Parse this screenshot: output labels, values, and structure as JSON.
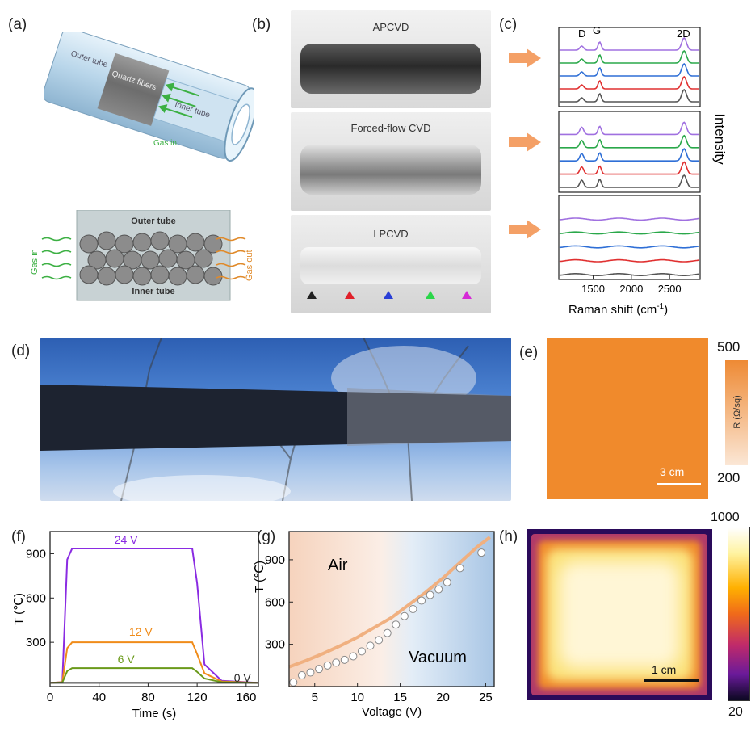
{
  "panels": {
    "a": {
      "label": "(a)",
      "tube_labels": {
        "outer": "Outer tube",
        "quartz": "Quartz fibers",
        "inner": "Inner tube",
        "gas_in": "Gas in"
      },
      "cross": {
        "outer": "Outer tube",
        "inner": "Inner tube",
        "gas_in": "Gas in",
        "gas_out": "Gas out"
      }
    },
    "b": {
      "label": "(b)",
      "photos": [
        "APCVD",
        "Forced-flow CVD",
        "LPCVD"
      ],
      "marker_colors": [
        "#222222",
        "#e0202a",
        "#2a3fd6",
        "#2bd64a",
        "#d62ad6"
      ]
    },
    "c": {
      "label": "(c)",
      "peaks": [
        "D",
        "G",
        "2D"
      ],
      "ylabel": "Intensity",
      "xlabel": "Raman shift (cm",
      "xlabel_sup": "-1",
      "xlabel_end": ")",
      "xticks": [
        "1500",
        "2000",
        "2500"
      ],
      "colors": [
        "#555555",
        "#e03030",
        "#2f6fd6",
        "#2aa84a",
        "#a070e0"
      ]
    },
    "d": {
      "label": "(d)"
    },
    "e": {
      "label": "(e)",
      "cbar_max": "500",
      "cbar_min": "200",
      "cbar_label": "R (Ω/sq)",
      "scalebar": "3 cm",
      "map_color": "#f08a2c"
    },
    "f": {
      "label": "(f)"
    },
    "g": {
      "label": "(g)",
      "air": "Air",
      "vacuum": "Vacuum"
    },
    "h": {
      "label": "(h)",
      "cbar_max": "1000",
      "cbar_min": "20",
      "scalebar": "1 cm"
    }
  },
  "chart_data": [
    {
      "type": "line",
      "panel": "f",
      "xlabel": "Time (s)",
      "ylabel": "T (℃)",
      "xlim": [
        0,
        170
      ],
      "ylim": [
        0,
        1050
      ],
      "xticks": [
        0,
        40,
        80,
        120,
        160
      ],
      "yticks": [
        300,
        600,
        900
      ],
      "series": [
        {
          "name": "24 V",
          "color": "#8a2be2",
          "x": [
            0,
            10,
            14,
            18,
            116,
            120,
            126,
            140,
            170
          ],
          "y": [
            25,
            30,
            860,
            935,
            935,
            700,
            150,
            40,
            25
          ]
        },
        {
          "name": "12 V",
          "color": "#f08c1a",
          "x": [
            0,
            10,
            14,
            18,
            116,
            120,
            126,
            140,
            170
          ],
          "y": [
            25,
            30,
            260,
            300,
            300,
            220,
            90,
            35,
            25
          ]
        },
        {
          "name": "6 V",
          "color": "#6a9a1a",
          "x": [
            0,
            10,
            14,
            18,
            116,
            120,
            126,
            140,
            170
          ],
          "y": [
            25,
            28,
            105,
            125,
            125,
            100,
            55,
            30,
            25
          ]
        },
        {
          "name": "0 V",
          "color": "#333333",
          "x": [
            0,
            170
          ],
          "y": [
            25,
            25
          ]
        }
      ]
    },
    {
      "type": "scatter",
      "panel": "g",
      "xlabel": "Voltage (V)",
      "ylabel": "T (℃)",
      "xlim": [
        2,
        26
      ],
      "ylim": [
        0,
        1100
      ],
      "xticks": [
        5,
        10,
        15,
        20,
        25
      ],
      "yticks": [
        300,
        600,
        900
      ],
      "points": {
        "x": [
          2.5,
          3.5,
          4.5,
          5.5,
          6.5,
          7.5,
          8.5,
          9.5,
          10.5,
          11.5,
          12.5,
          13.5,
          14.5,
          15.5,
          16.5,
          17.5,
          18.5,
          19.5,
          20.5,
          22,
          24.5
        ],
        "y": [
          30,
          80,
          100,
          125,
          150,
          170,
          190,
          215,
          250,
          290,
          330,
          380,
          440,
          500,
          550,
          610,
          650,
          690,
          740,
          840,
          950
        ]
      },
      "fit": {
        "x": [
          2,
          4,
          6,
          8,
          10,
          12,
          14,
          16,
          18,
          20,
          22,
          24,
          25.5
        ],
        "y": [
          140,
          185,
          235,
          290,
          350,
          420,
          490,
          580,
          670,
          770,
          880,
          990,
          1060
        ]
      },
      "fit_color": "#f0b080"
    },
    {
      "type": "line",
      "panel": "c",
      "xlabel": "Raman shift (cm-1)",
      "ylabel": "Intensity",
      "xlim": [
        1050,
        2900
      ],
      "xticks": [
        1500,
        2000,
        2500
      ],
      "groups": [
        "APCVD",
        "Forced-flow CVD",
        "LPCVD"
      ]
    }
  ]
}
